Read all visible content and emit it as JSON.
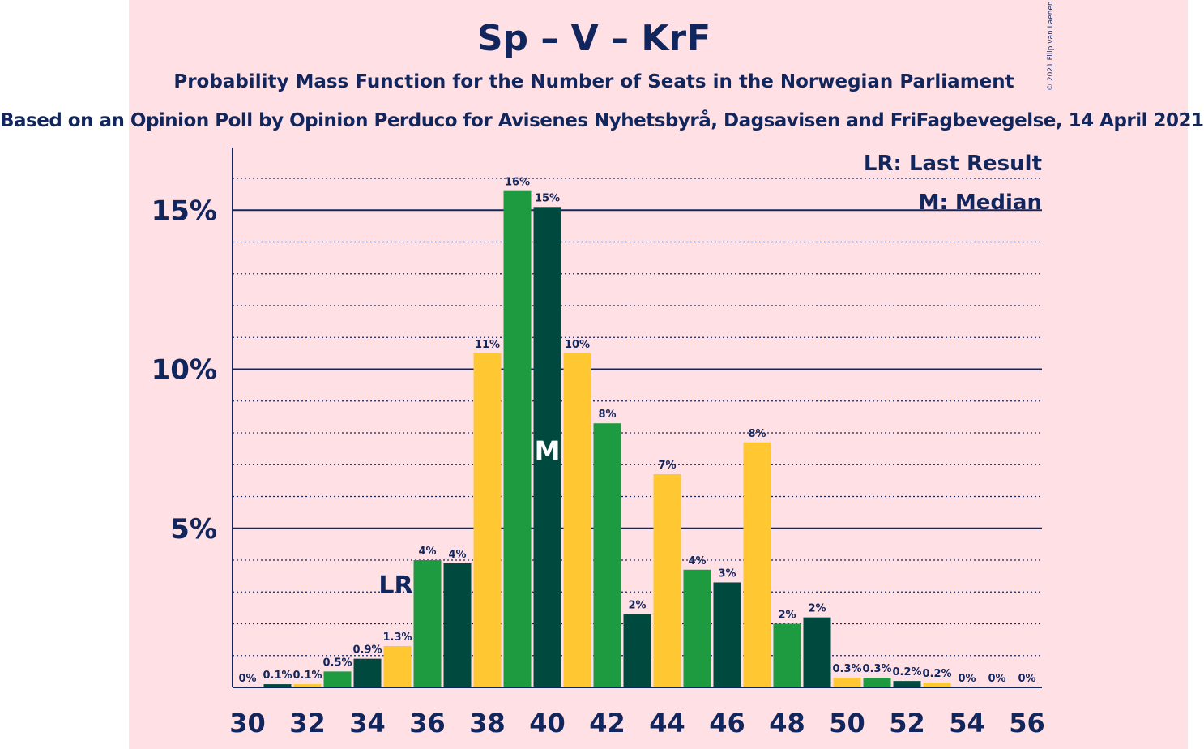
{
  "title": "Sp – V – KrF",
  "subtitle": "Probability Mass Function for the Number of Seats in the Norwegian Parliament",
  "source": "Based on an Opinion Poll by Opinion Perduco for Avisenes Nyhetsbyrå, Dagsavisen and FriFagbevegelse, 14 April 2021",
  "copyright": "© 2021 Filip van Laenen",
  "legend": {
    "last_result": "LR: Last Result",
    "median": "M: Median"
  },
  "colors": {
    "background": "#ffe0e4",
    "text": "#12265e",
    "green": "#1e9a40",
    "dark_green": "#00493f",
    "yellow": "#ffc832"
  },
  "chart_data": {
    "type": "bar",
    "x": [
      30,
      31,
      32,
      33,
      34,
      35,
      36,
      37,
      38,
      39,
      40,
      41,
      42,
      43,
      44,
      45,
      46,
      47,
      48,
      49,
      50,
      51,
      52,
      53,
      54,
      55,
      56
    ],
    "values": [
      0,
      0.1,
      0.1,
      0.5,
      0.9,
      1.3,
      4.0,
      3.9,
      10.5,
      15.6,
      15.1,
      10.5,
      8.3,
      2.3,
      6.7,
      3.7,
      3.3,
      7.7,
      2.0,
      2.2,
      0.3,
      0.3,
      0.2,
      0.15,
      0,
      0,
      0
    ],
    "value_labels": [
      "0%",
      "0.1%",
      "0.1%",
      "0.5%",
      "0.9%",
      "1.3%",
      "4%",
      "4%",
      "11%",
      "16%",
      "15%",
      "10%",
      "8%",
      "2%",
      "7%",
      "4%",
      "3%",
      "8%",
      "2%",
      "2%",
      "0.3%",
      "0.3%",
      "0.2%",
      "0.2%",
      "0%",
      "0%",
      "0%"
    ],
    "bar_colors": [
      "yellow",
      "dark_green",
      "yellow",
      "green",
      "dark_green",
      "yellow",
      "green",
      "dark_green",
      "yellow",
      "green",
      "dark_green",
      "yellow",
      "green",
      "dark_green",
      "yellow",
      "green",
      "dark_green",
      "yellow",
      "green",
      "dark_green",
      "yellow",
      "green",
      "dark_green",
      "yellow",
      "green",
      "dark_green",
      "yellow"
    ],
    "x_tick_labels": [
      "30",
      "32",
      "34",
      "36",
      "38",
      "40",
      "42",
      "44",
      "46",
      "48",
      "50",
      "52",
      "54",
      "56"
    ],
    "y_ticks": [
      5,
      10,
      15
    ],
    "y_tick_labels": [
      "5%",
      "10%",
      "15%"
    ],
    "ylim": [
      0,
      17
    ],
    "grid": true,
    "last_result_seat": 35,
    "last_result_label": "LR",
    "median_seat": 40,
    "median_label": "M",
    "legend_position": "top-right"
  }
}
